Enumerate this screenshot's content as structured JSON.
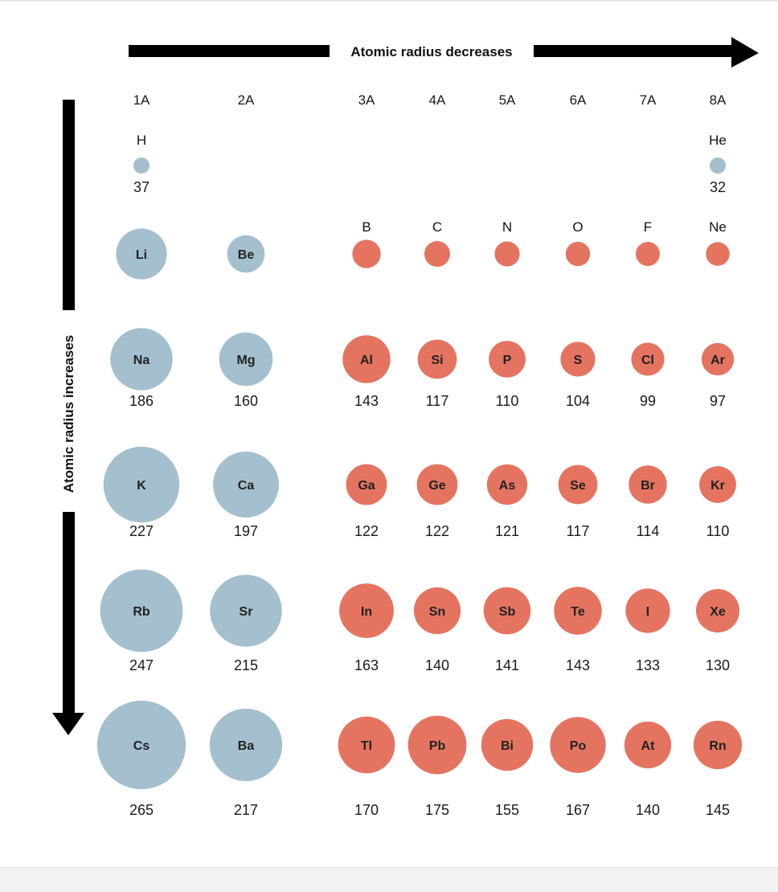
{
  "header_arrow_label": "Atomic radius decreases",
  "side_arrow_label": "Atomic radius increases",
  "groups": [
    "1A",
    "2A",
    "3A",
    "4A",
    "5A",
    "6A",
    "7A",
    "8A"
  ],
  "colors": {
    "s_block": "#a4bfcd",
    "p_block": "#e47460",
    "arrow": "#000000"
  },
  "elements": [
    {
      "symbol": "H",
      "radius": 37,
      "group": "1A",
      "period": 1,
      "block": "s",
      "label_above": true
    },
    {
      "symbol": "He",
      "radius": 32,
      "group": "8A",
      "period": 1,
      "block": "s",
      "label_above": true
    },
    {
      "symbol": "Li",
      "radius": 152,
      "group": "1A",
      "period": 2,
      "block": "s",
      "hide_value": true
    },
    {
      "symbol": "Be",
      "radius": 112,
      "group": "2A",
      "period": 2,
      "block": "s",
      "hide_value": true
    },
    {
      "symbol": "B",
      "radius": 85,
      "group": "3A",
      "period": 2,
      "block": "p",
      "hide_value": true,
      "label_above": true
    },
    {
      "symbol": "C",
      "radius": 77,
      "group": "4A",
      "period": 2,
      "block": "p",
      "hide_value": true,
      "label_above": true
    },
    {
      "symbol": "N",
      "radius": 75,
      "group": "5A",
      "period": 2,
      "block": "p",
      "hide_value": true,
      "label_above": true
    },
    {
      "symbol": "O",
      "radius": 73,
      "group": "6A",
      "period": 2,
      "block": "p",
      "hide_value": true,
      "label_above": true
    },
    {
      "symbol": "F",
      "radius": 72,
      "group": "7A",
      "period": 2,
      "block": "p",
      "hide_value": true,
      "label_above": true
    },
    {
      "symbol": "Ne",
      "radius": 71,
      "group": "8A",
      "period": 2,
      "block": "p",
      "hide_value": true,
      "label_above": true
    },
    {
      "symbol": "Na",
      "radius": 186,
      "group": "1A",
      "period": 3,
      "block": "s"
    },
    {
      "symbol": "Mg",
      "radius": 160,
      "group": "2A",
      "period": 3,
      "block": "s"
    },
    {
      "symbol": "Al",
      "radius": 143,
      "group": "3A",
      "period": 3,
      "block": "p"
    },
    {
      "symbol": "Si",
      "radius": 117,
      "group": "4A",
      "period": 3,
      "block": "p"
    },
    {
      "symbol": "P",
      "radius": 110,
      "group": "5A",
      "period": 3,
      "block": "p"
    },
    {
      "symbol": "S",
      "radius": 104,
      "group": "6A",
      "period": 3,
      "block": "p"
    },
    {
      "symbol": "Cl",
      "radius": 99,
      "group": "7A",
      "period": 3,
      "block": "p"
    },
    {
      "symbol": "Ar",
      "radius": 97,
      "group": "8A",
      "period": 3,
      "block": "p"
    },
    {
      "symbol": "K",
      "radius": 227,
      "group": "1A",
      "period": 4,
      "block": "s"
    },
    {
      "symbol": "Ca",
      "radius": 197,
      "group": "2A",
      "period": 4,
      "block": "s"
    },
    {
      "symbol": "Ga",
      "radius": 122,
      "group": "3A",
      "period": 4,
      "block": "p"
    },
    {
      "symbol": "Ge",
      "radius": 122,
      "group": "4A",
      "period": 4,
      "block": "p"
    },
    {
      "symbol": "As",
      "radius": 121,
      "group": "5A",
      "period": 4,
      "block": "p"
    },
    {
      "symbol": "Se",
      "radius": 117,
      "group": "6A",
      "period": 4,
      "block": "p"
    },
    {
      "symbol": "Br",
      "radius": 114,
      "group": "7A",
      "period": 4,
      "block": "p"
    },
    {
      "symbol": "Kr",
      "radius": 110,
      "group": "8A",
      "period": 4,
      "block": "p"
    },
    {
      "symbol": "Rb",
      "radius": 247,
      "group": "1A",
      "period": 5,
      "block": "s"
    },
    {
      "symbol": "Sr",
      "radius": 215,
      "group": "2A",
      "period": 5,
      "block": "s"
    },
    {
      "symbol": "In",
      "radius": 163,
      "group": "3A",
      "period": 5,
      "block": "p"
    },
    {
      "symbol": "Sn",
      "radius": 140,
      "group": "4A",
      "period": 5,
      "block": "p"
    },
    {
      "symbol": "Sb",
      "radius": 141,
      "group": "5A",
      "period": 5,
      "block": "p"
    },
    {
      "symbol": "Te",
      "radius": 143,
      "group": "6A",
      "period": 5,
      "block": "p"
    },
    {
      "symbol": "I",
      "radius": 133,
      "group": "7A",
      "period": 5,
      "block": "p"
    },
    {
      "symbol": "Xe",
      "radius": 130,
      "group": "8A",
      "period": 5,
      "block": "p"
    },
    {
      "symbol": "Cs",
      "radius": 265,
      "group": "1A",
      "period": 6,
      "block": "s"
    },
    {
      "symbol": "Ba",
      "radius": 217,
      "group": "2A",
      "period": 6,
      "block": "s"
    },
    {
      "symbol": "Tl",
      "radius": 170,
      "group": "3A",
      "period": 6,
      "block": "p"
    },
    {
      "symbol": "Pb",
      "radius": 175,
      "group": "4A",
      "period": 6,
      "block": "p"
    },
    {
      "symbol": "Bi",
      "radius": 155,
      "group": "5A",
      "period": 6,
      "block": "p"
    },
    {
      "symbol": "Po",
      "radius": 167,
      "group": "6A",
      "period": 6,
      "block": "p"
    },
    {
      "symbol": "At",
      "radius": 140,
      "group": "7A",
      "period": 6,
      "block": "p"
    },
    {
      "symbol": "Rn",
      "radius": 145,
      "group": "8A",
      "period": 6,
      "block": "p"
    }
  ]
}
